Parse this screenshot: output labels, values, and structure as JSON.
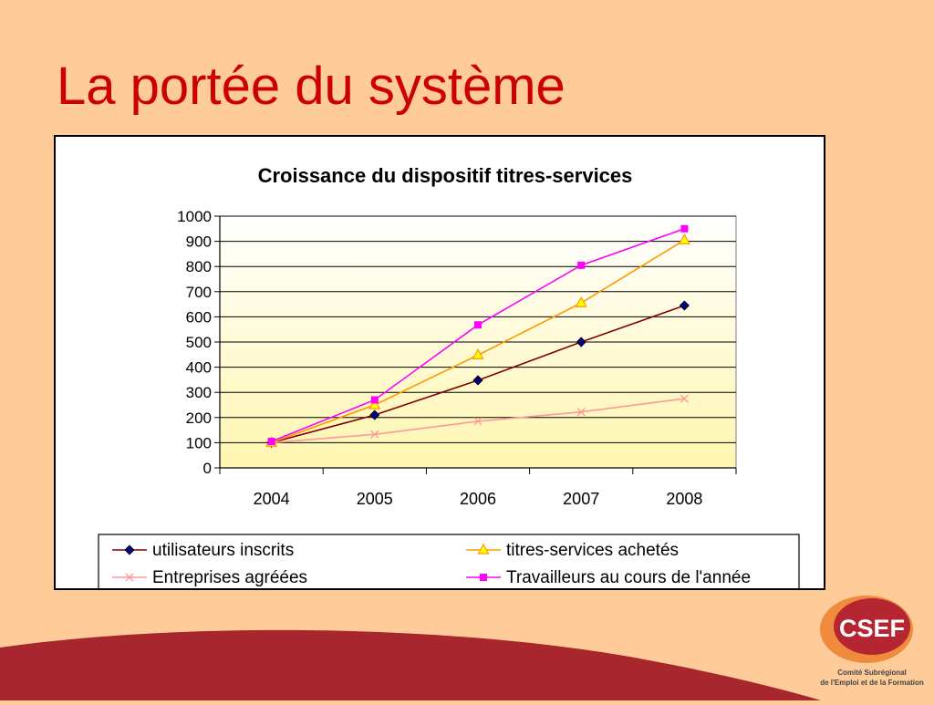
{
  "slide": {
    "title": "La portée du système"
  },
  "logo": {
    "text": "CSEF",
    "subtitle_line1": "Comité Subrégional",
    "subtitle_line2": "de l'Emploi et de la Formation"
  },
  "colors": {
    "background": "#FFCB99",
    "title": "#CC0000",
    "wave": "#A8262E",
    "logo_orange": "#F08A3C",
    "logo_red": "#B52532"
  },
  "chart_data": {
    "type": "line",
    "title": "Croissance du dispositif titres-services",
    "xlabel": "",
    "ylabel": "",
    "categories": [
      "2004",
      "2005",
      "2006",
      "2007",
      "2008"
    ],
    "ylim": [
      0,
      1000
    ],
    "yticks": [
      0,
      100,
      200,
      300,
      400,
      500,
      600,
      700,
      800,
      900,
      1000
    ],
    "grid": true,
    "legend_position": "bottom",
    "series": [
      {
        "name": "utilisateurs inscrits",
        "values": [
          100,
          210,
          348,
          500,
          645
        ],
        "color": "#800000",
        "marker": "diamond",
        "marker_fill": "#000080"
      },
      {
        "name": "titres-services achetés",
        "values": [
          100,
          250,
          448,
          655,
          905
        ],
        "color": "#FF9900",
        "marker": "triangle",
        "marker_fill": "#FFFF00"
      },
      {
        "name": "Entreprises agréées",
        "values": [
          100,
          133,
          185,
          222,
          275
        ],
        "color": "#FF9999",
        "marker": "x",
        "marker_fill": "#FF9999"
      },
      {
        "name": "Travailleurs au cours de l'année",
        "values": [
          105,
          270,
          568,
          805,
          950
        ],
        "color": "#FF00FF",
        "marker": "square",
        "marker_fill": "#FF00FF"
      }
    ]
  }
}
